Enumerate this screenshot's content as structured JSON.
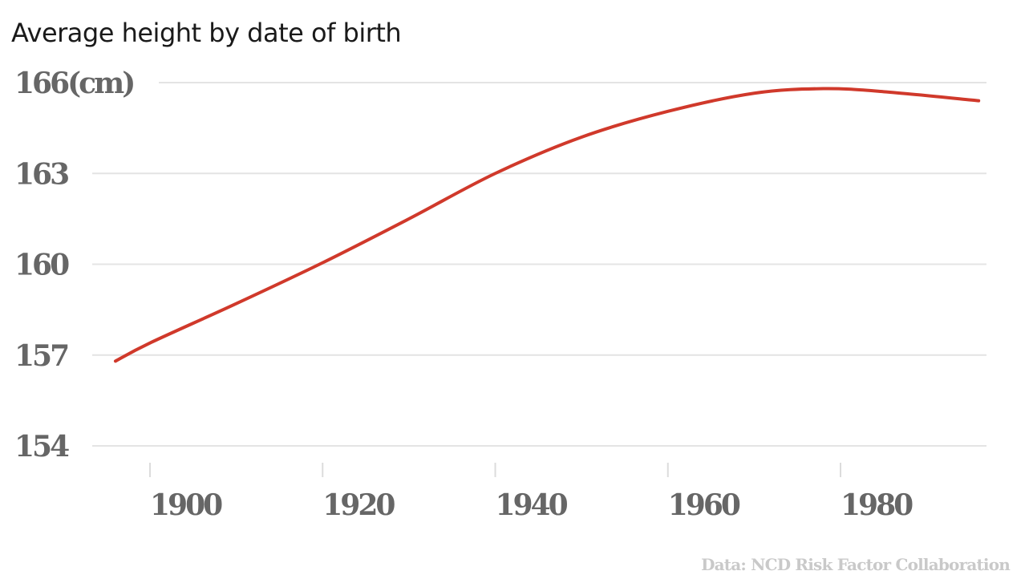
{
  "chart_data": {
    "type": "line",
    "title": "Average height by date of birth",
    "xlabel": "",
    "ylabel": "",
    "y_unit_label": "(cm)",
    "xlim": [
      1896,
      1996
    ],
    "ylim": [
      154,
      166
    ],
    "x_ticks": [
      1900,
      1920,
      1940,
      1960,
      1980
    ],
    "y_ticks": [
      154,
      157,
      160,
      163,
      166
    ],
    "grid": true,
    "series": [
      {
        "name": "Average height",
        "color": "#d0392b",
        "x": [
          1896,
          1900,
          1910,
          1920,
          1930,
          1940,
          1950,
          1960,
          1970,
          1978,
          1985,
          1996
        ],
        "y": [
          156.8,
          157.4,
          158.7,
          160.05,
          161.5,
          163.0,
          164.2,
          165.05,
          165.65,
          165.8,
          165.7,
          165.4
        ]
      }
    ],
    "source": "Data: NCD Risk Factor Collaboration"
  }
}
